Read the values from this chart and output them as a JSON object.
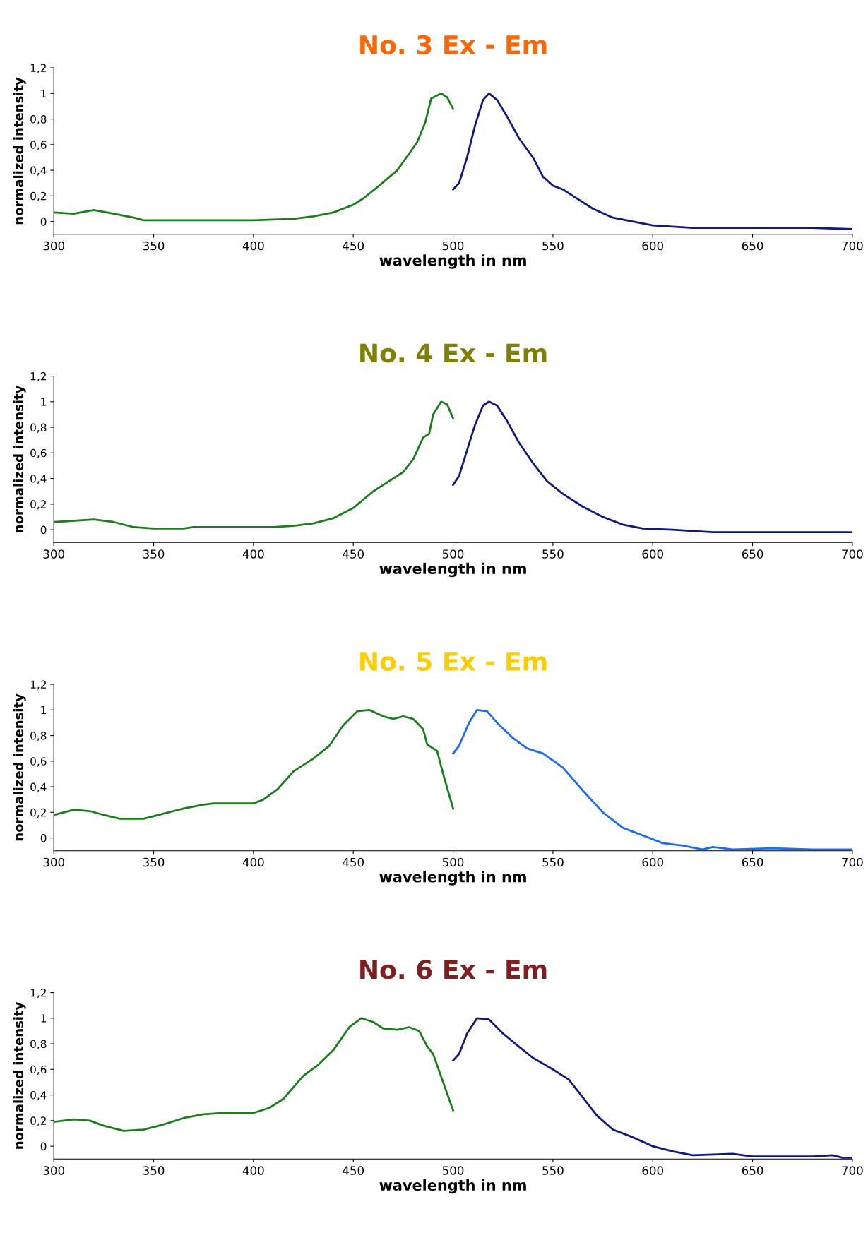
{
  "chart_data": [
    {
      "type": "line",
      "title": "No. 3 Ex - Em",
      "xlabel": "wavelength in nm",
      "ylabel": "normalized intensity",
      "xlim": [
        300,
        700
      ],
      "xticks": [
        300,
        350,
        400,
        450,
        500,
        550,
        600,
        650,
        700
      ],
      "ylim": [
        -0.1,
        1.2
      ],
      "yticks": [
        {
          "value": 0,
          "label": "0"
        },
        {
          "value": 0.2,
          "label": "0,2"
        },
        {
          "value": 0.4,
          "label": "0,4"
        },
        {
          "value": 0.6,
          "label": "0,6"
        },
        {
          "value": 0.8,
          "label": "0,8"
        },
        {
          "value": 1,
          "label": "1"
        },
        {
          "value": 1.2,
          "label": "1,2"
        }
      ],
      "grid": false,
      "legend": false,
      "series": [
        {
          "color": "#1a7f1a",
          "x": [
            300,
            310,
            320,
            330,
            340,
            345,
            370,
            400,
            420,
            430,
            440,
            450,
            455,
            463,
            472,
            478,
            482,
            486,
            489,
            494,
            497,
            500
          ],
          "values": [
            0.07,
            0.06,
            0.09,
            0.06,
            0.03,
            0.01,
            0.01,
            0.01,
            0.02,
            0.04,
            0.07,
            0.13,
            0.18,
            0.28,
            0.4,
            0.53,
            0.62,
            0.77,
            0.96,
            1.0,
            0.97,
            0.88
          ]
        },
        {
          "color": "#0d1a80",
          "x": [
            500,
            503,
            507,
            511,
            515,
            518,
            522,
            527,
            533,
            540,
            545,
            550,
            555,
            560,
            570,
            580,
            590,
            600,
            620,
            650,
            680,
            700
          ],
          "values": [
            0.25,
            0.3,
            0.5,
            0.75,
            0.95,
            1.0,
            0.95,
            0.82,
            0.65,
            0.5,
            0.35,
            0.28,
            0.25,
            0.2,
            0.1,
            0.03,
            0.0,
            -0.03,
            -0.05,
            -0.05,
            -0.05,
            -0.06
          ]
        }
      ]
    },
    {
      "type": "line",
      "title": "No. 4 Ex - Em",
      "xlabel": "wavelength in nm",
      "ylabel": "normalized intensity",
      "xlim": [
        300,
        700
      ],
      "xticks": [
        300,
        350,
        400,
        450,
        500,
        550,
        600,
        650,
        700
      ],
      "ylim": [
        -0.1,
        1.2
      ],
      "yticks": [
        {
          "value": 0,
          "label": "0"
        },
        {
          "value": 0.2,
          "label": "0,2"
        },
        {
          "value": 0.4,
          "label": "0,4"
        },
        {
          "value": 0.6,
          "label": "0,6"
        },
        {
          "value": 0.8,
          "label": "0,8"
        },
        {
          "value": 1,
          "label": "1"
        },
        {
          "value": 1.2,
          "label": "1,2"
        }
      ],
      "grid": false,
      "legend": false,
      "series": [
        {
          "color": "#1a7f1a",
          "x": [
            300,
            320,
            330,
            340,
            350,
            365,
            370,
            410,
            420,
            430,
            440,
            450,
            460,
            465,
            475,
            480,
            485,
            488,
            490,
            494,
            497,
            500
          ],
          "values": [
            0.06,
            0.08,
            0.06,
            0.02,
            0.01,
            0.01,
            0.02,
            0.02,
            0.03,
            0.05,
            0.09,
            0.17,
            0.3,
            0.35,
            0.45,
            0.55,
            0.72,
            0.75,
            0.9,
            1.0,
            0.98,
            0.87
          ]
        },
        {
          "color": "#0d1a80",
          "x": [
            500,
            503,
            507,
            511,
            515,
            518,
            522,
            527,
            533,
            540,
            547,
            555,
            565,
            575,
            585,
            595,
            610,
            630,
            650,
            670,
            700
          ],
          "values": [
            0.35,
            0.42,
            0.62,
            0.82,
            0.97,
            1.0,
            0.97,
            0.85,
            0.68,
            0.52,
            0.38,
            0.28,
            0.18,
            0.1,
            0.04,
            0.01,
            0.0,
            -0.02,
            -0.02,
            -0.02,
            -0.02
          ]
        }
      ]
    },
    {
      "type": "line",
      "title": "No. 5 Ex - Em",
      "xlabel": "wavelength in nm",
      "ylabel": "normalized intensity",
      "xlim": [
        300,
        700
      ],
      "xticks": [
        300,
        350,
        400,
        450,
        500,
        550,
        600,
        650,
        700
      ],
      "ylim": [
        -0.1,
        1.2
      ],
      "yticks": [
        {
          "value": 0,
          "label": "0"
        },
        {
          "value": 0.2,
          "label": "0,2"
        },
        {
          "value": 0.4,
          "label": "0,4"
        },
        {
          "value": 0.6,
          "label": "0,6"
        },
        {
          "value": 0.8,
          "label": "0,8"
        },
        {
          "value": 1,
          "label": "1"
        },
        {
          "value": 1.2,
          "label": "1,2"
        }
      ],
      "grid": false,
      "legend": false,
      "series": [
        {
          "color": "#1a7f1a",
          "x": [
            300,
            305,
            310,
            318,
            325,
            333,
            345,
            355,
            365,
            375,
            380,
            400,
            405,
            412,
            420,
            430,
            438,
            445,
            452,
            458,
            465,
            470,
            475,
            480,
            485,
            487,
            492,
            495,
            500
          ],
          "values": [
            0.18,
            0.2,
            0.22,
            0.21,
            0.18,
            0.15,
            0.15,
            0.19,
            0.23,
            0.26,
            0.27,
            0.27,
            0.3,
            0.38,
            0.52,
            0.62,
            0.72,
            0.88,
            0.99,
            1.0,
            0.95,
            0.93,
            0.95,
            0.93,
            0.85,
            0.73,
            0.68,
            0.5,
            0.23
          ]
        },
        {
          "color": "#1e6cf0",
          "x": [
            500,
            503,
            508,
            512,
            517,
            522,
            530,
            537,
            545,
            555,
            565,
            575,
            585,
            595,
            605,
            615,
            625,
            630,
            640,
            660,
            680,
            700
          ],
          "values": [
            0.66,
            0.72,
            0.9,
            1.0,
            0.99,
            0.9,
            0.78,
            0.7,
            0.66,
            0.55,
            0.37,
            0.2,
            0.08,
            0.02,
            -0.04,
            -0.06,
            -0.09,
            -0.07,
            -0.09,
            -0.08,
            -0.09,
            -0.09
          ]
        }
      ]
    },
    {
      "type": "line",
      "title": "No. 6 Ex - Em",
      "xlabel": "wavelength in nm",
      "ylabel": "normalized intensity",
      "xlim": [
        300,
        700
      ],
      "xticks": [
        300,
        350,
        400,
        450,
        500,
        550,
        600,
        650,
        700
      ],
      "ylim": [
        -0.1,
        1.2
      ],
      "yticks": [
        {
          "value": 0,
          "label": "0"
        },
        {
          "value": 0.2,
          "label": "0,2"
        },
        {
          "value": 0.4,
          "label": "0,4"
        },
        {
          "value": 0.6,
          "label": "0,6"
        },
        {
          "value": 0.8,
          "label": "0,8"
        },
        {
          "value": 1,
          "label": "1"
        },
        {
          "value": 1.2,
          "label": "1,2"
        }
      ],
      "grid": false,
      "legend": false,
      "series": [
        {
          "color": "#1a7f1a",
          "x": [
            300,
            310,
            318,
            325,
            335,
            345,
            355,
            365,
            375,
            385,
            400,
            408,
            415,
            425,
            432,
            440,
            448,
            454,
            460,
            465,
            472,
            478,
            483,
            487,
            490,
            495,
            500
          ],
          "values": [
            0.19,
            0.21,
            0.2,
            0.16,
            0.12,
            0.13,
            0.17,
            0.22,
            0.25,
            0.26,
            0.26,
            0.3,
            0.37,
            0.55,
            0.63,
            0.75,
            0.93,
            1.0,
            0.97,
            0.92,
            0.91,
            0.93,
            0.9,
            0.78,
            0.72,
            0.5,
            0.28
          ]
        },
        {
          "color": "#0d1a80",
          "x": [
            500,
            503,
            507,
            512,
            518,
            525,
            532,
            540,
            550,
            558,
            565,
            572,
            580,
            590,
            600,
            610,
            620,
            640,
            650,
            680,
            690,
            695,
            700
          ],
          "values": [
            0.67,
            0.72,
            0.88,
            1.0,
            0.99,
            0.88,
            0.79,
            0.69,
            0.6,
            0.52,
            0.38,
            0.24,
            0.13,
            0.07,
            0.0,
            -0.04,
            -0.07,
            -0.06,
            -0.08,
            -0.08,
            -0.07,
            -0.09,
            -0.09
          ]
        }
      ]
    }
  ]
}
